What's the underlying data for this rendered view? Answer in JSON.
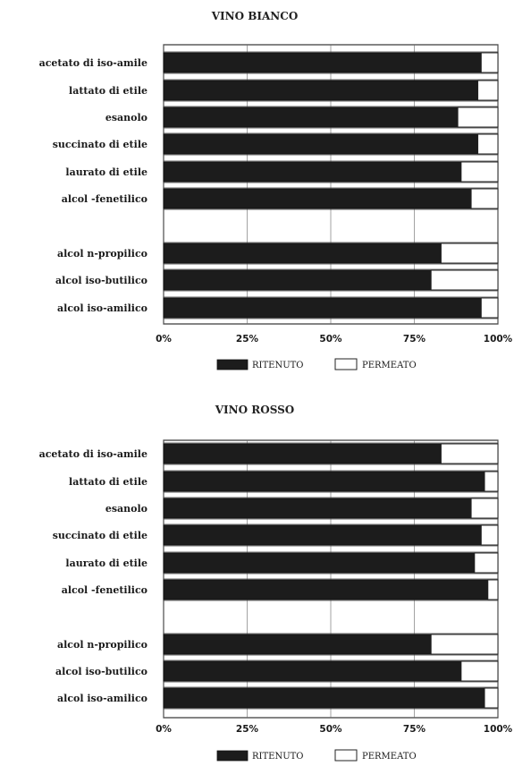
{
  "chart_data": [
    {
      "type": "bar",
      "orientation": "horizontal",
      "stacked": true,
      "title": "VINO BIANCO",
      "categories": [
        "acetato di iso-amile",
        "lattato di etile",
        "esanolo",
        "succinato di etile",
        "laurato di etile",
        "alcol   -fenetilico",
        "",
        "alcol n-propilico",
        "alcol iso-butilico",
        "alcol iso-amilico"
      ],
      "series": [
        {
          "name": "RITENUTO",
          "values": [
            95,
            94,
            88,
            94,
            89,
            92,
            null,
            83,
            80,
            95
          ]
        },
        {
          "name": "PERMEATO",
          "values": [
            5,
            6,
            12,
            6,
            11,
            8,
            null,
            17,
            20,
            5
          ]
        }
      ],
      "xticks": [
        "0%",
        "25%",
        "50%",
        "75%",
        "100%"
      ],
      "xlim": [
        0,
        100
      ],
      "grid": true,
      "legend": "bottom",
      "colors": {
        "RITENUTO": "#1c1c1c",
        "PERMEATO": "#ffffff"
      }
    },
    {
      "type": "bar",
      "orientation": "horizontal",
      "stacked": true,
      "title": "VINO ROSSO",
      "categories": [
        "acetato di iso-amile",
        "lattato di etile",
        "esanolo",
        "succinato di etile",
        "laurato di etile",
        "alcol   -fenetilico",
        "",
        "alcol n-propilico",
        "alcol iso-butilico",
        "alcol iso-amilico"
      ],
      "series": [
        {
          "name": "RITENUTO",
          "values": [
            83,
            96,
            92,
            95,
            93,
            97,
            null,
            80,
            89,
            96
          ]
        },
        {
          "name": "PERMEATO",
          "values": [
            17,
            4,
            8,
            5,
            7,
            3,
            null,
            20,
            11,
            4
          ]
        }
      ],
      "xticks": [
        "0%",
        "25%",
        "50%",
        "75%",
        "100%"
      ],
      "xlim": [
        0,
        100
      ],
      "grid": true,
      "legend": "bottom",
      "colors": {
        "RITENUTO": "#1c1c1c",
        "PERMEATO": "#ffffff"
      }
    }
  ]
}
